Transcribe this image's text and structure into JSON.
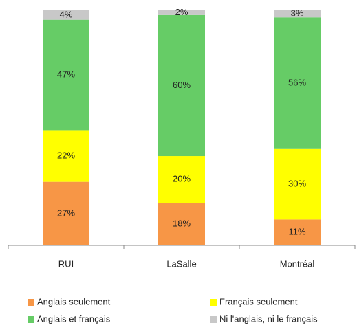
{
  "chart_data": {
    "type": "stacked_bar",
    "categories": [
      "RUI",
      "LaSalle",
      "Montréal"
    ],
    "series": [
      {
        "name": "Anglais seulement",
        "color": "#f79646",
        "values": [
          27,
          18,
          11
        ],
        "value_labels": [
          "27%",
          "18%",
          "11%"
        ]
      },
      {
        "name": "Français seulement",
        "color": "#ffff00",
        "values": [
          22,
          20,
          30
        ],
        "value_labels": [
          "22%",
          "20%",
          "30%"
        ]
      },
      {
        "name": "Anglais et français",
        "color": "#66cc66",
        "values": [
          47,
          60,
          56
        ],
        "value_labels": [
          "47%",
          "60%",
          "56%"
        ]
      },
      {
        "name": "Ni l'anglais, ni le français",
        "color": "#c8c8c8",
        "values": [
          4,
          2,
          3
        ],
        "value_labels": [
          "4%",
          "2%",
          "3%"
        ]
      }
    ],
    "ylim": [
      0,
      100
    ]
  }
}
